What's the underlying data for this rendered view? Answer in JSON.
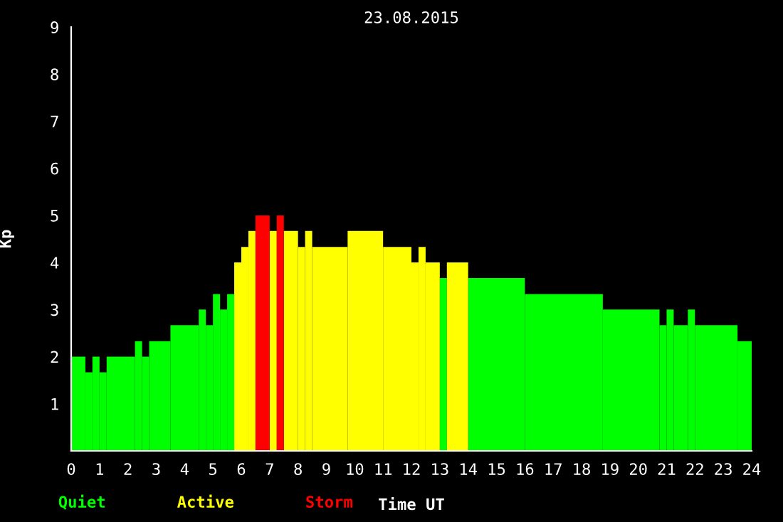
{
  "chart_data": {
    "type": "histogram",
    "title": "23.08.2015",
    "xlabel": "Time UT",
    "ylabel": "Kp",
    "bins": [
      0,
      0.5,
      0.75,
      1,
      1.25,
      2.25,
      2.5,
      2.75,
      3.5,
      4.5,
      4.75,
      5,
      5.25,
      5.5,
      5.75,
      6,
      6.25,
      6.5,
      7,
      7.25,
      7.5,
      8,
      8.25,
      8.5,
      9.75,
      11,
      12,
      12.25,
      12.5,
      13,
      13.25,
      14,
      16,
      18.75,
      20.75,
      21,
      21.25,
      21.75,
      22,
      23.5,
      24
    ],
    "series": [
      {
        "name": "Quiet",
        "color": "#00ff00",
        "values": [
          2,
          1.67,
          2,
          1.67,
          2,
          2.33,
          2,
          2.33,
          2.67,
          3,
          2.67,
          3.33,
          3,
          3.33,
          null,
          null,
          null,
          null,
          null,
          null,
          null,
          null,
          null,
          null,
          null,
          null,
          null,
          null,
          null,
          3.67,
          null,
          3.67,
          3.33,
          3,
          2.67,
          3,
          2.67,
          3,
          2.67,
          2.33
        ]
      },
      {
        "name": "Active",
        "color": "#ffff00",
        "values": [
          null,
          null,
          null,
          null,
          null,
          null,
          null,
          null,
          null,
          null,
          null,
          null,
          null,
          null,
          4,
          4.33,
          4.67,
          null,
          4.67,
          null,
          4.67,
          4.33,
          4.67,
          4.33,
          4.67,
          4.33,
          4,
          4.33,
          4,
          null,
          4,
          null,
          null,
          null,
          null,
          null,
          null,
          null,
          null,
          null
        ]
      },
      {
        "name": "Storm",
        "color": "#ff0000",
        "values": [
          null,
          null,
          null,
          null,
          null,
          null,
          null,
          null,
          null,
          null,
          null,
          null,
          null,
          null,
          null,
          null,
          null,
          5,
          null,
          5,
          null,
          null,
          null,
          null,
          null,
          null,
          null,
          null,
          null,
          null,
          null,
          null,
          null,
          null,
          null,
          null,
          null,
          null,
          null,
          null
        ]
      }
    ],
    "xlim": [
      0,
      24
    ],
    "xticks": [
      0,
      1,
      2,
      3,
      4,
      5,
      6,
      7,
      8,
      9,
      10,
      11,
      12,
      13,
      14,
      15,
      16,
      17,
      18,
      19,
      20,
      21,
      22,
      23,
      24
    ],
    "ylim": [
      0,
      9
    ],
    "yticks": [
      1,
      2,
      3,
      4,
      5,
      6,
      7,
      8,
      9
    ],
    "grid": false,
    "legend": "bottom left"
  }
}
